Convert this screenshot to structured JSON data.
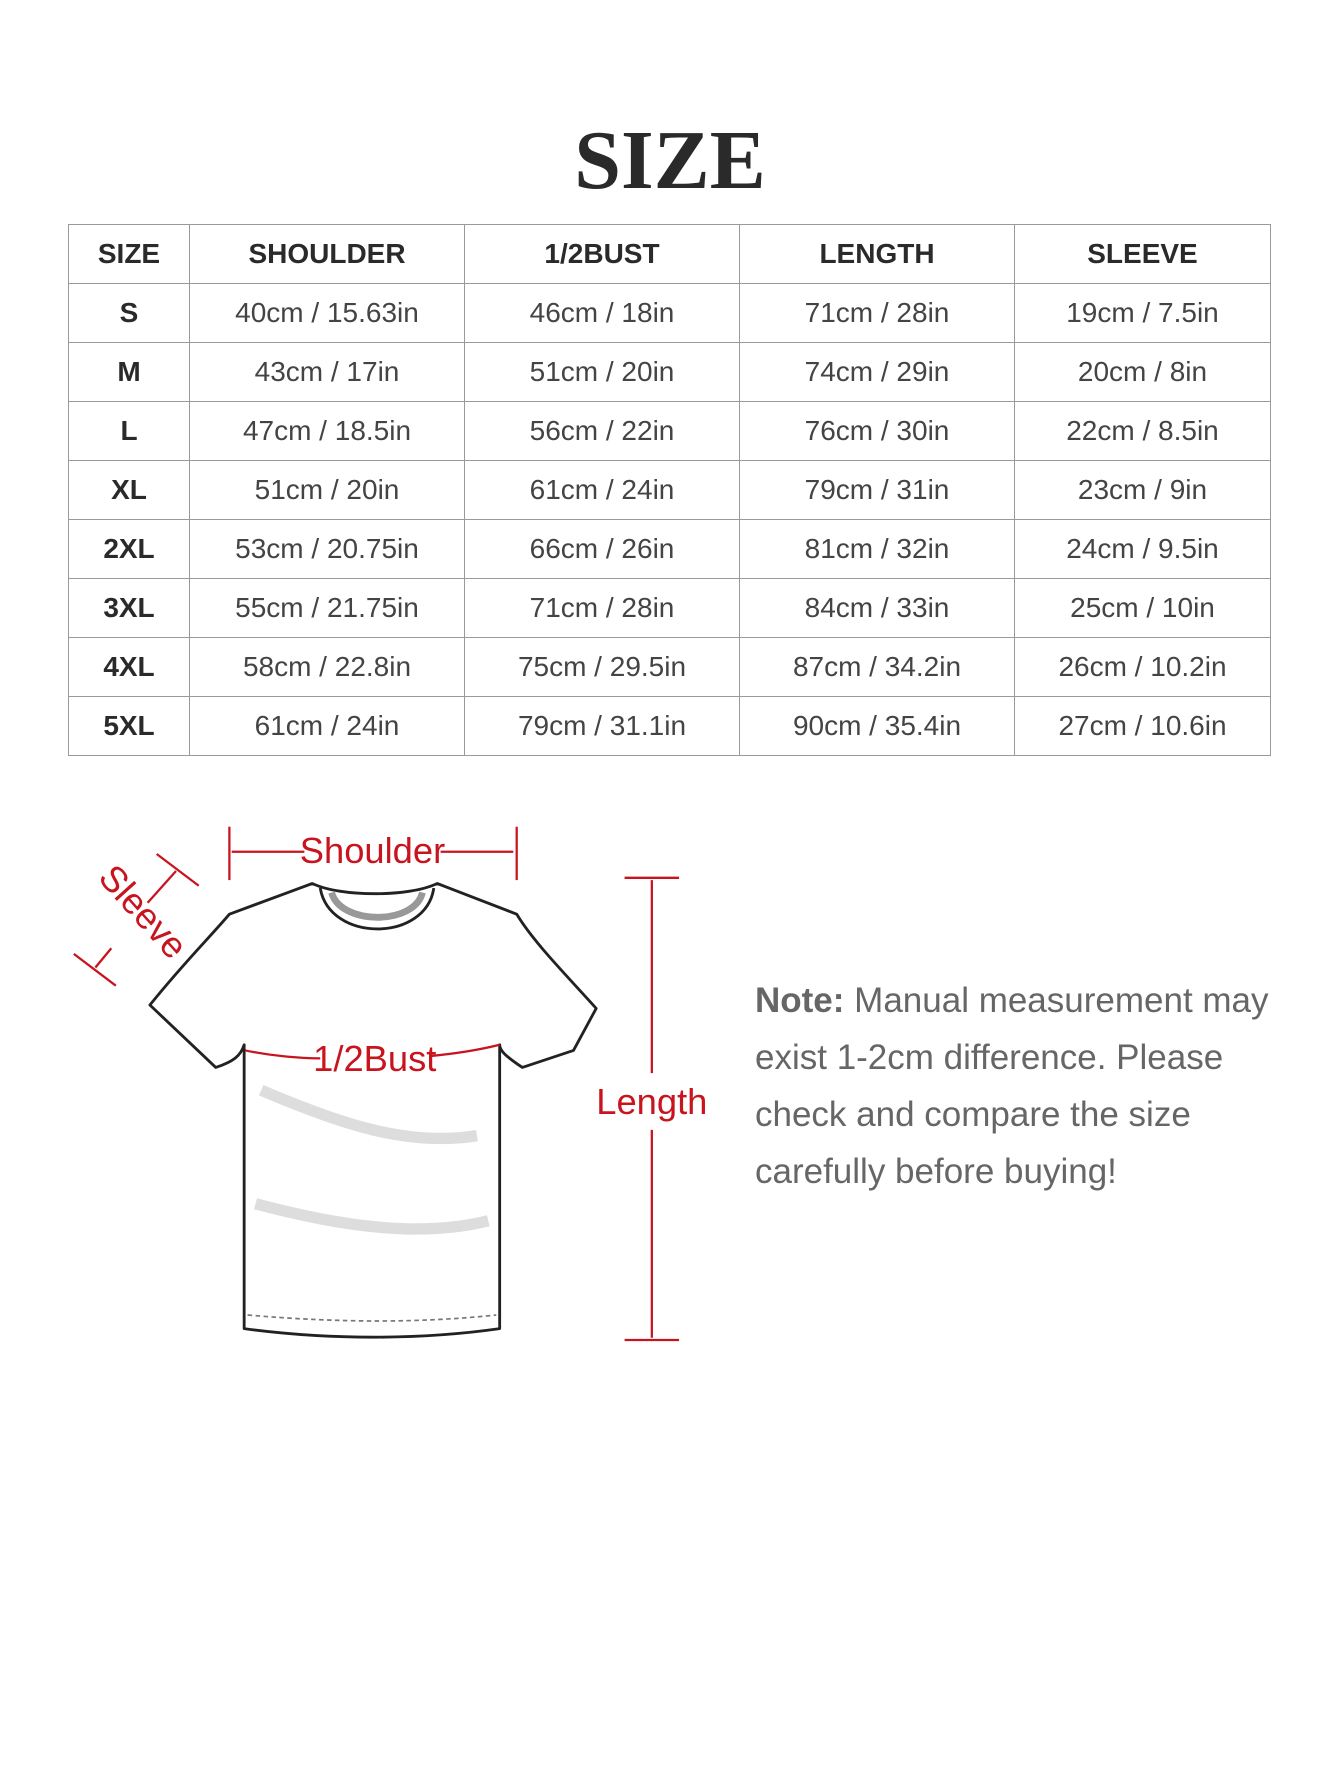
{
  "header": {
    "title": "SIZE"
  },
  "table": {
    "columns": [
      "SIZE",
      "SHOULDER",
      "1/2BUST",
      "LENGTH",
      "SLEEVE"
    ],
    "rows": [
      [
        "S",
        "40cm / 15.63in",
        "46cm / 18in",
        "71cm / 28in",
        "19cm / 7.5in"
      ],
      [
        "M",
        "43cm / 17in",
        "51cm / 20in",
        "74cm / 29in",
        "20cm / 8in"
      ],
      [
        "L",
        "47cm / 18.5in",
        "56cm / 22in",
        "76cm / 30in",
        "22cm / 8.5in"
      ],
      [
        "XL",
        "51cm / 20in",
        "61cm / 24in",
        "79cm / 31in",
        "23cm / 9in"
      ],
      [
        "2XL",
        "53cm / 20.75in",
        "66cm / 26in",
        "81cm / 32in",
        "24cm / 9.5in"
      ],
      [
        "3XL",
        "55cm / 21.75in",
        "71cm / 28in",
        "84cm / 33in",
        "25cm / 10in"
      ],
      [
        "4XL",
        "58cm / 22.8in",
        "75cm / 29.5in",
        "87cm / 34.2in",
        "26cm / 10.2in"
      ],
      [
        "5XL",
        "61cm / 24in",
        "79cm / 31.1in",
        "90cm / 35.4in",
        "27cm / 10.6in"
      ]
    ]
  },
  "diagram": {
    "shoulder": "Shoulder",
    "sleeve": "Sleeve",
    "bust": "1/2Bust",
    "length": "Length"
  },
  "note": {
    "label": "Note:",
    "text": "Manual measurement may exist 1-2cm difference. Please check and compare the size carefully before buying!"
  }
}
